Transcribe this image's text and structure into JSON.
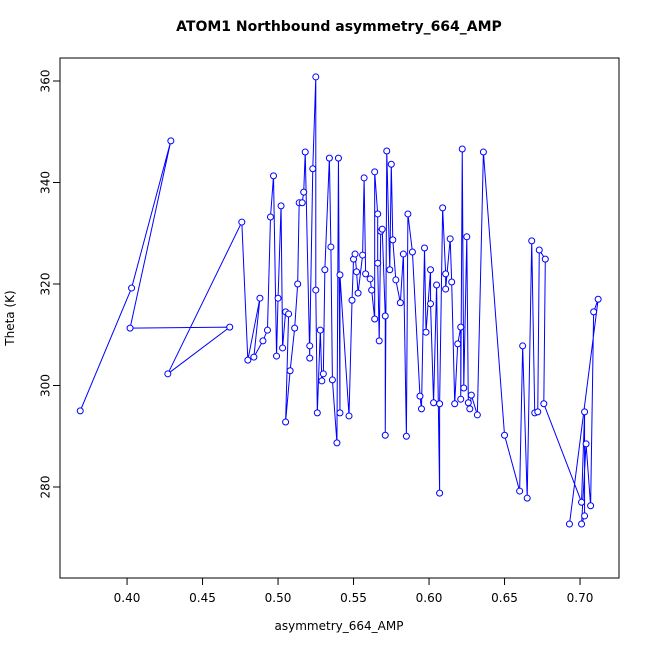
{
  "chart_data": {
    "type": "line",
    "markers": true,
    "title": "ATOM1 Northbound asymmetry_664_AMP",
    "x_label": "asymmetry_664_AMP",
    "y_label": "Theta (K)",
    "color": "#0000ff",
    "xlim": [
      0.3556,
      0.7258
    ],
    "ylim": [
      262.07,
      364.53
    ],
    "xticks": [
      {
        "value": 0.4,
        "label": "0.40"
      },
      {
        "value": 0.45,
        "label": "0.45"
      },
      {
        "value": 0.5,
        "label": "0.50"
      },
      {
        "value": 0.55,
        "label": "0.55"
      },
      {
        "value": 0.6,
        "label": "0.60"
      },
      {
        "value": 0.65,
        "label": "0.65"
      },
      {
        "value": 0.7,
        "label": "0.70"
      }
    ],
    "yticks": [
      280,
      300,
      320,
      340,
      360
    ],
    "x": [
      0.369,
      0.403,
      0.429,
      0.402,
      0.468,
      0.427,
      0.476,
      0.48,
      0.488,
      0.484,
      0.49,
      0.493,
      0.495,
      0.497,
      0.499,
      0.5,
      0.502,
      0.503,
      0.505,
      0.507,
      0.505,
      0.508,
      0.511,
      0.513,
      0.514,
      0.516,
      0.517,
      0.518,
      0.521,
      0.521,
      0.523,
      0.525,
      0.525,
      0.526,
      0.528,
      0.529,
      0.53,
      0.531,
      0.534,
      0.535,
      0.536,
      0.539,
      0.54,
      0.541,
      0.541,
      0.547,
      0.549,
      0.55,
      0.551,
      0.552,
      0.553,
      0.556,
      0.557,
      0.558,
      0.561,
      0.562,
      0.564,
      0.564,
      0.566,
      0.566,
      0.567,
      0.568,
      0.569,
      0.571,
      0.571,
      0.572,
      0.574,
      0.575,
      0.576,
      0.578,
      0.581,
      0.583,
      0.585,
      0.586,
      0.589,
      0.594,
      0.595,
      0.597,
      0.598,
      0.601,
      0.601,
      0.603,
      0.605,
      0.607,
      0.607,
      0.609,
      0.611,
      0.611,
      0.614,
      0.615,
      0.617,
      0.619,
      0.621,
      0.621,
      0.622,
      0.623,
      0.625,
      0.626,
      0.627,
      0.628,
      0.632,
      0.636,
      0.65,
      0.66,
      0.662,
      0.665,
      0.668,
      0.67,
      0.672,
      0.673,
      0.677,
      0.676,
      0.701,
      0.703,
      0.703,
      0.701,
      0.704,
      0.707,
      0.709,
      0.712,
      0.693
    ],
    "values": [
      295.0,
      319.2,
      348.2,
      311.3,
      311.5,
      302.3,
      332.2,
      305.0,
      317.2,
      305.6,
      308.8,
      310.9,
      333.2,
      341.3,
      305.8,
      317.2,
      335.4,
      307.4,
      314.5,
      314.1,
      292.8,
      302.9,
      311.3,
      320.0,
      336.0,
      336.0,
      338.1,
      346.0,
      305.4,
      307.8,
      342.7,
      360.8,
      318.8,
      294.6,
      310.9,
      300.9,
      302.3,
      322.8,
      344.8,
      327.3,
      301.1,
      288.7,
      344.8,
      294.6,
      321.8,
      294.0,
      316.8,
      324.9,
      325.9,
      322.4,
      318.2,
      325.7,
      340.9,
      322.0,
      321.0,
      318.8,
      313.1,
      342.1,
      333.8,
      324.1,
      308.8,
      330.4,
      330.8,
      313.7,
      290.2,
      346.2,
      322.8,
      343.6,
      328.7,
      320.8,
      316.3,
      325.9,
      290.0,
      333.8,
      326.3,
      297.9,
      295.4,
      327.1,
      310.5,
      322.8,
      316.1,
      296.6,
      319.8,
      278.8,
      296.4,
      335.0,
      322.0,
      319.0,
      328.9,
      320.4,
      296.4,
      308.2,
      311.5,
      297.3,
      346.6,
      299.5,
      329.3,
      296.6,
      295.4,
      298.1,
      294.2,
      346.0,
      290.2,
      279.2,
      307.8,
      277.8,
      328.5,
      294.6,
      294.8,
      326.7,
      324.9,
      296.4,
      277.0,
      294.8,
      274.3,
      272.7,
      288.5,
      276.3,
      314.5,
      317.0,
      272.7
    ]
  }
}
